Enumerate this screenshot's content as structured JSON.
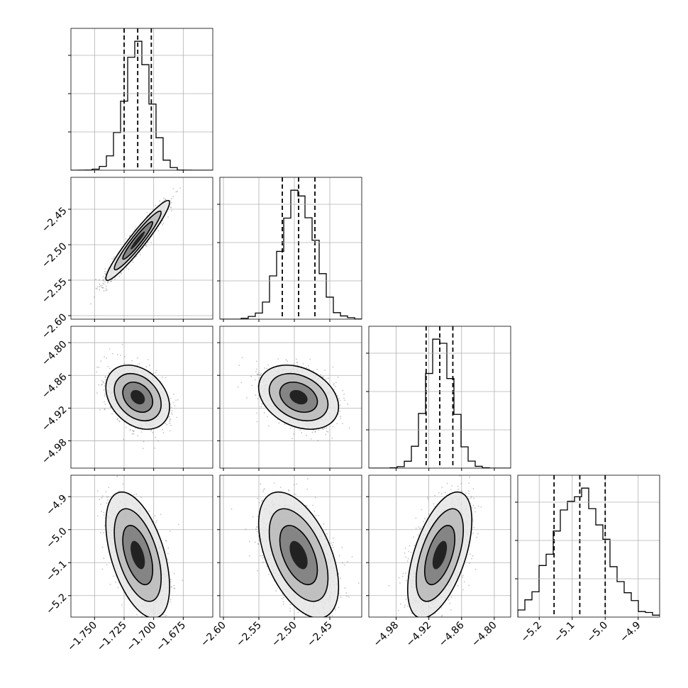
{
  "chart_data": {
    "type": "corner",
    "title": "",
    "grid": true,
    "parameters": [
      {
        "name": "",
        "range": [
          -1.77,
          -1.65
        ],
        "ticks": [
          "-1.750",
          "-1.725",
          "-1.700",
          "-1.675"
        ],
        "tick_values": [
          -1.75,
          -1.725,
          -1.7,
          -1.675
        ],
        "quantiles": [
          -1.725,
          -1.7135,
          -1.702
        ],
        "mean": -1.7135,
        "sd": 0.011
      },
      {
        "name": "",
        "range": [
          -2.605,
          -2.405
        ],
        "ticks": [
          "-2.60",
          "-2.55",
          "-2.50",
          "-2.45"
        ],
        "tick_values": [
          -2.6,
          -2.55,
          -2.5,
          -2.45
        ],
        "quantiles": [
          -2.517,
          -2.494,
          -2.471
        ],
        "mean": -2.494,
        "sd": 0.023
      },
      {
        "name": "",
        "range": [
          -5.03,
          -4.77
        ],
        "ticks": [
          "-4.98",
          "-4.92",
          "-4.86",
          "-4.80"
        ],
        "tick_values": [
          -4.98,
          -4.92,
          -4.86,
          -4.8
        ],
        "quantiles": [
          -4.925,
          -4.9,
          -4.876
        ],
        "mean": -4.9,
        "sd": 0.024
      },
      {
        "name": "",
        "range": [
          -5.265,
          -4.835
        ],
        "ticks": [
          "-5.2",
          "-5.1",
          "-5.0",
          "-4.9"
        ],
        "tick_values": [
          -5.2,
          -5.1,
          -5.0,
          -4.9
        ],
        "quantiles": [
          -5.155,
          -5.077,
          -5.0
        ],
        "mean": -5.077,
        "sd": 0.078
      }
    ],
    "correlations": {
      "0-1": 0.95,
      "0-2": -0.3,
      "1-2": -0.3,
      "0-3": -0.5,
      "1-3": -0.5,
      "2-3": 0.55
    },
    "histogram_style": "step",
    "quantile_line_style": "dashed",
    "contour_levels": 3,
    "colors": {
      "line": "#000000",
      "grid": "#b0b0b0",
      "points": "#555555"
    }
  }
}
